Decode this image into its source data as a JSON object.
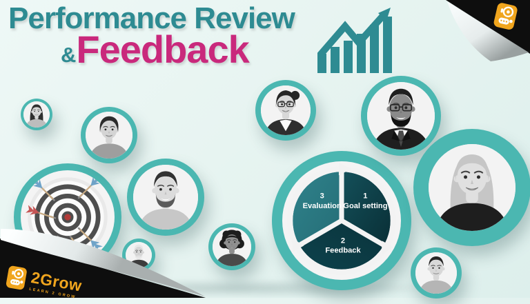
{
  "slide": {
    "title": {
      "line1": "Performance Review",
      "ampersand": "&",
      "line2": "Feedback"
    },
    "brand": {
      "name": "2Grow",
      "tagline": "LEARN 2 GROW"
    },
    "cycle": {
      "type": "cycle",
      "segments": [
        {
          "number": "1",
          "label": "Goal setting"
        },
        {
          "number": "2",
          "label": "Feedback"
        },
        {
          "number": "3",
          "label": "Evaluation"
        }
      ]
    },
    "avatars": [
      {
        "id": "woman-long-hair",
        "desc": "woman with long dark hair",
        "hair": "long",
        "hairColor": "#2f2f2f",
        "skin": "#d8d8d8",
        "top": "#bdbdbd"
      },
      {
        "id": "woman-short-hair",
        "desc": "woman with short pixie hair",
        "hair": "pixie",
        "hairColor": "#2b2b2b",
        "skin": "#d4d4d4",
        "top": "#9e9e9e"
      },
      {
        "id": "man-beard",
        "desc": "smiling man with beard",
        "hair": "short",
        "hairColor": "#333333",
        "skin": "#dcdcdc",
        "top": "#c7c7c7",
        "beard": true,
        "beardColor": "#5a5a5a"
      },
      {
        "id": "elderly-man",
        "desc": "elderly man with white hair",
        "hair": "short",
        "hairColor": "#e8e8e8",
        "skin": "#d6d6d6",
        "top": "#3c3c3c",
        "beard": true,
        "beardColor": "#e8e8e8"
      },
      {
        "id": "woman-afro",
        "desc": "woman with afro hair",
        "hair": "afro",
        "hairColor": "#1c1c1c",
        "skin": "#8f8f8f",
        "top": "#4a4a4a"
      },
      {
        "id": "woman-glasses",
        "desc": "businesswoman with glasses and blazer",
        "hair": "bun",
        "hairColor": "#262626",
        "skin": "#d8d8d8",
        "top": "#2e2e2e",
        "glasses": true,
        "shirt": true
      },
      {
        "id": "man-suit",
        "desc": "man in suit with glasses and goatee",
        "hair": "short",
        "hairColor": "#1f1f1f",
        "skin": "#8a8a8a",
        "top": "#1f1f1f",
        "glasses": true,
        "beard": true,
        "beardColor": "#111111",
        "suit": true
      },
      {
        "id": "woman-blonde",
        "desc": "woman with long blonde hair",
        "hair": "long",
        "hairColor": "#c6c6c6",
        "skin": "#e0e0e0",
        "top": "#1e1e1e"
      },
      {
        "id": "young-man",
        "desc": "young man with dark hair",
        "hair": "short",
        "hairColor": "#262626",
        "skin": "#d8d8d8",
        "top": "#b5b5b5"
      }
    ],
    "decorations": {
      "target": "dartboard with darts hitting bullseye",
      "growth_chart": "rising bar chart with upward arrow",
      "page_curls": "black folded page corners top-right and bottom-left"
    },
    "colors": {
      "teal": "#2e8b92",
      "pink": "#c9297c",
      "bubble_teal": "#4bb7b1",
      "orange": "#f0a51e",
      "segment_dark": "#0e3b43",
      "segment_light": "#2d7e87",
      "background": "#e7f4f1"
    }
  }
}
